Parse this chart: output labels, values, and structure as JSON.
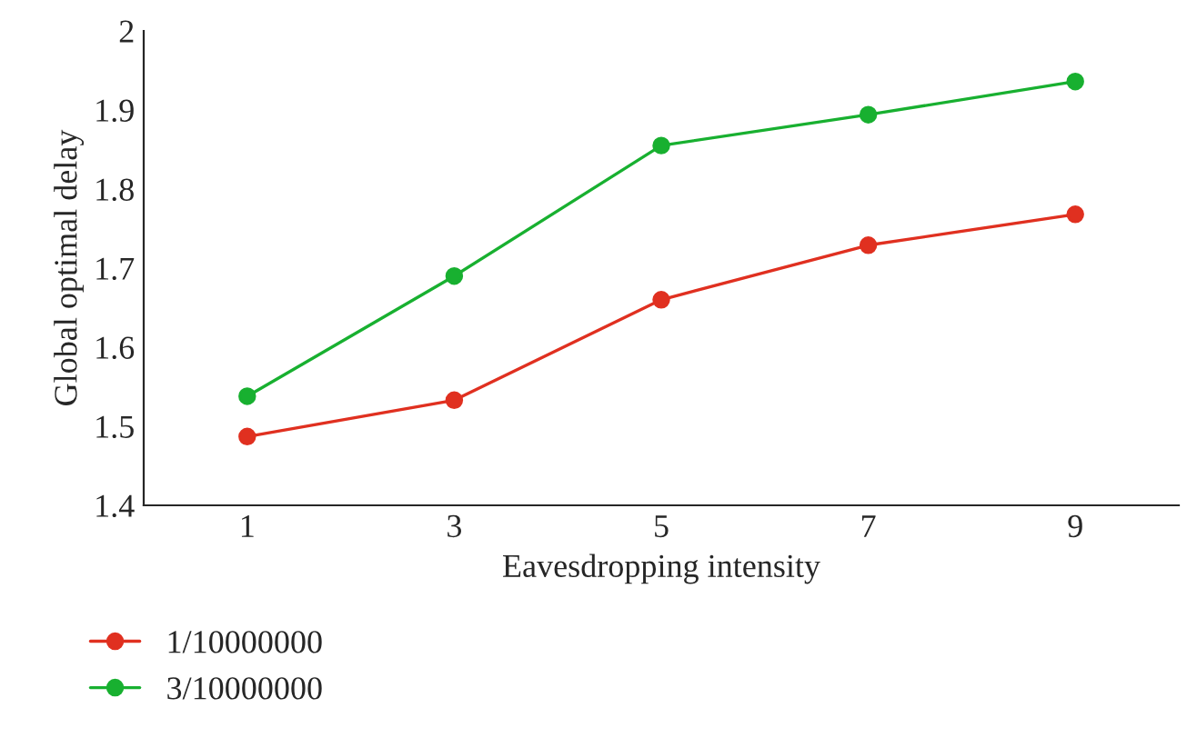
{
  "chart_data": {
    "type": "line",
    "xlabel": "Eavesdropping intensity",
    "ylabel": "Global optimal delay",
    "x": [
      1,
      3,
      5,
      7,
      9
    ],
    "series": [
      {
        "name": "1/10000000",
        "color": "#e03020",
        "values": [
          1.487,
          1.533,
          1.66,
          1.729,
          1.768
        ]
      },
      {
        "name": "3/10000000",
        "color": "#18b030",
        "values": [
          1.538,
          1.69,
          1.855,
          1.894,
          1.936
        ]
      }
    ],
    "xlim": [
      0,
      10
    ],
    "xticks": [
      1,
      3,
      5,
      7,
      9
    ],
    "ylim": [
      1.4,
      2
    ],
    "yticks": [
      1.4,
      1.5,
      1.6,
      1.7,
      1.8,
      1.9,
      2
    ],
    "grid": false,
    "legend": "bottom left",
    "marker": "circle",
    "line_style": "solid"
  }
}
